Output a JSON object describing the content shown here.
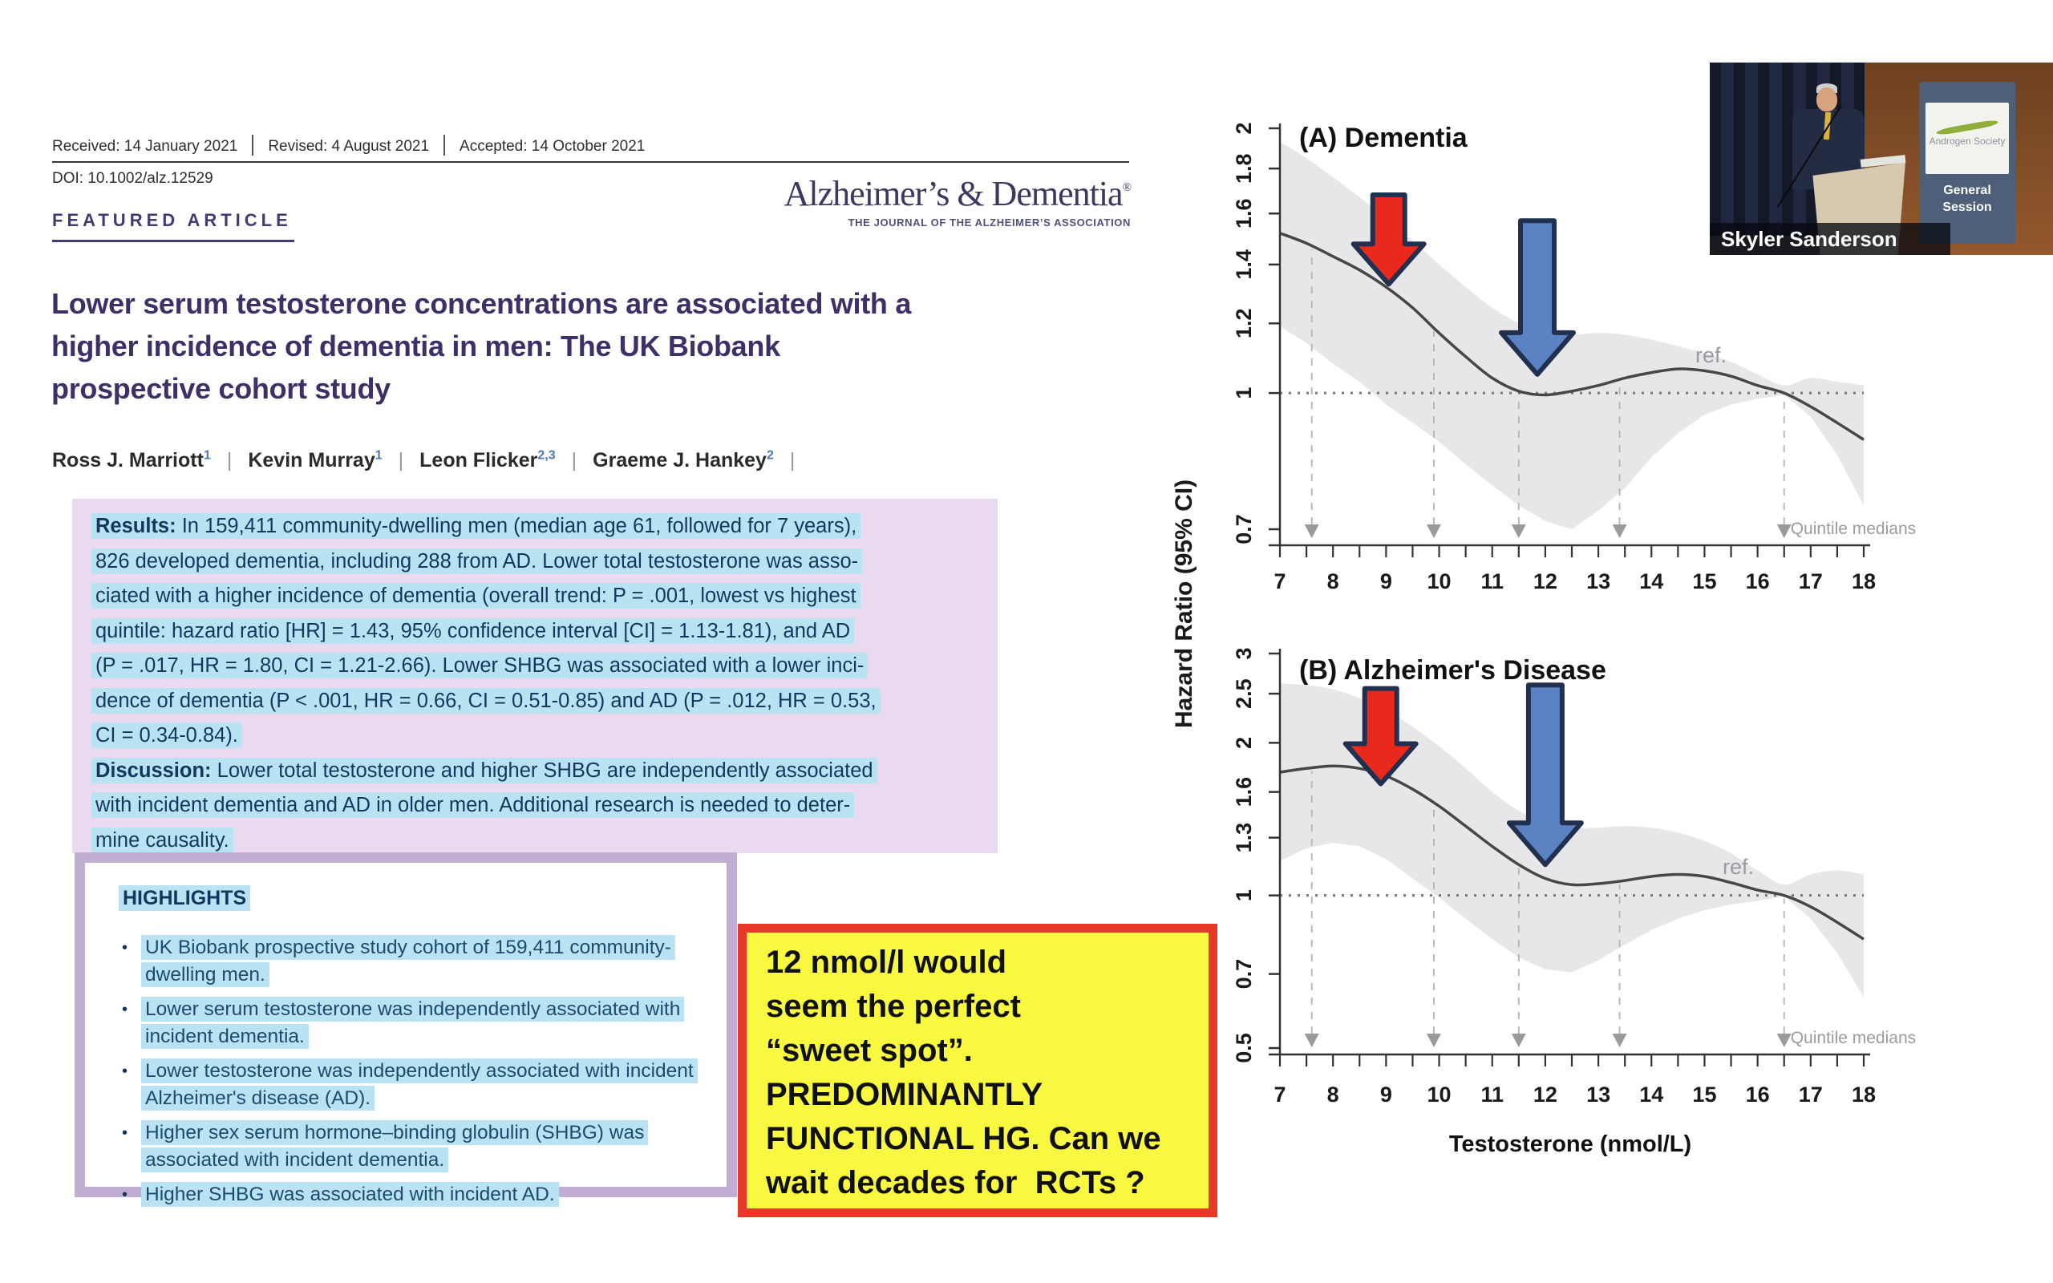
{
  "paper": {
    "header": {
      "segments": [
        "Received: 14 January 2021",
        "Revised: 4 August 2021",
        "Accepted: 14 October 2021"
      ],
      "doi": "DOI: 10.1002/alz.12529"
    },
    "journal": {
      "name": "Alzheimer’s & Dementia",
      "registered": "®",
      "tagline": "THE JOURNAL OF THE ALZHEIMER’S ASSOCIATION"
    },
    "section_tag": "FEATURED ARTICLE",
    "title_lines": [
      "Lower serum testosterone concentrations are associated with a",
      "higher incidence of dementia in men: The UK Biobank",
      "prospective cohort study"
    ],
    "authors": [
      {
        "name": "Ross J. Marriott",
        "sup": "1"
      },
      {
        "name": "Kevin Murray",
        "sup": "1"
      },
      {
        "name": "Leon Flicker",
        "sup": "2,3"
      },
      {
        "name": "Graeme J. Hankey",
        "sup": "2"
      }
    ],
    "author_separator": "|",
    "abstract_lines": [
      {
        "lead": "Results:",
        "text": "In 159,411 community-dwelling men (median age 61, followed for 7 years),"
      },
      {
        "text": "826 developed dementia, including 288 from AD. Lower total testosterone was asso-"
      },
      {
        "text": "ciated with a higher incidence of dementia (overall trend: P = .001, lowest vs highest"
      },
      {
        "text": "quintile: hazard ratio [HR] = 1.43, 95% confidence interval [CI] = 1.13-1.81), and AD"
      },
      {
        "text": "(P = .017, HR = 1.80, CI = 1.21-2.66). Lower SHBG was associated with a lower inci-"
      },
      {
        "text": "dence of dementia (P < .001, HR = 0.66, CI = 0.51-0.85) and AD (P = .012, HR = 0.53,"
      },
      {
        "text": "CI = 0.34-0.84)."
      },
      {
        "lead": "Discussion:",
        "text": "Lower total testosterone and higher SHBG are independently associated"
      },
      {
        "text": "with incident dementia and AD in older men. Additional research is needed to deter-"
      },
      {
        "text": "mine causality."
      }
    ],
    "highlights": {
      "heading": "HIGHLIGHTS",
      "bullets": [
        "UK Biobank prospective study cohort of 159,411 community-dwelling men.",
        "Lower serum testosterone was independently associated with incident dementia.",
        "Lower testosterone was independently associated with incident Alzheimer's disease (AD).",
        "Higher sex serum hormone–binding globulin (SHBG) was associated with incident dementia.",
        "Higher SHBG was associated with incident AD."
      ]
    }
  },
  "note": {
    "background": "#f9f840",
    "border": "#e63928",
    "lines": [
      "12 nmol/l would",
      "seem the perfect",
      "“sweet spot”.",
      "PREDOMINANTLY",
      "FUNCTIONAL HG. Can we",
      "wait decades for  RCTs ?"
    ]
  },
  "video": {
    "speaker_name": "Skyler Sanderson",
    "banner_top": "Androgen Society",
    "banner_bottom_lines": [
      "General",
      "Session"
    ]
  },
  "charts_common": {
    "y_axis_label": "Hazard Ratio (95% CI)",
    "x_axis_label": "Testosterone (nmol/L)",
    "x_ticks": [
      7,
      8,
      9,
      10,
      11,
      12,
      13,
      14,
      15,
      16,
      17,
      18
    ],
    "quintile_medians": [
      7.6,
      9.9,
      11.5,
      13.4,
      16.5
    ],
    "quintile_label": "Quintile medians",
    "ref_label": "ref.",
    "colors": {
      "band": "#e7e7e9",
      "curve": "#474747",
      "red_arrow": "#e8291c",
      "blue_arrow": "#5b83c4",
      "arrow_outline": "#22304f",
      "gray_text": "#979ca0"
    }
  },
  "chart_data": [
    {
      "id": "A",
      "type": "line",
      "title": "(A) Dementia",
      "y_scale": "log",
      "y_ticks": [
        2,
        1.8,
        1.6,
        1.4,
        1.2,
        1,
        0.7
      ],
      "ylim": [
        0.62,
        2.05
      ],
      "xlim": [
        7,
        18
      ],
      "ref_line": 1,
      "curve": [
        [
          7,
          1.52
        ],
        [
          7.5,
          1.48
        ],
        [
          8,
          1.43
        ],
        [
          8.5,
          1.38
        ],
        [
          9,
          1.32
        ],
        [
          9.5,
          1.25
        ],
        [
          10,
          1.17
        ],
        [
          10.5,
          1.1
        ],
        [
          11,
          1.04
        ],
        [
          11.5,
          1.005
        ],
        [
          12,
          0.995
        ],
        [
          12.5,
          1.005
        ],
        [
          13,
          1.02
        ],
        [
          13.5,
          1.04
        ],
        [
          14,
          1.055
        ],
        [
          14.5,
          1.065
        ],
        [
          15,
          1.06
        ],
        [
          15.5,
          1.045
        ],
        [
          16,
          1.02
        ],
        [
          16.5,
          1.0
        ],
        [
          17,
          0.965
        ],
        [
          17.5,
          0.925
        ],
        [
          18,
          0.885
        ]
      ],
      "band_upper": [
        [
          7,
          1.93
        ],
        [
          7.5,
          1.85
        ],
        [
          8,
          1.76
        ],
        [
          8.5,
          1.67
        ],
        [
          9,
          1.58
        ],
        [
          9.5,
          1.49
        ],
        [
          10,
          1.4
        ],
        [
          10.5,
          1.32
        ],
        [
          11,
          1.25
        ],
        [
          11.5,
          1.2
        ],
        [
          12,
          1.17
        ],
        [
          12.5,
          1.165
        ],
        [
          13,
          1.17
        ],
        [
          13.5,
          1.165
        ],
        [
          14,
          1.15
        ],
        [
          14.5,
          1.13
        ],
        [
          15,
          1.11
        ],
        [
          15.5,
          1.085
        ],
        [
          16,
          1.05
        ],
        [
          16.5,
          1.02
        ],
        [
          17,
          1.04
        ],
        [
          17.5,
          1.03
        ],
        [
          18,
          1.02
        ]
      ],
      "band_lower": [
        [
          7,
          1.19
        ],
        [
          7.5,
          1.14
        ],
        [
          8,
          1.08
        ],
        [
          8.5,
          1.03
        ],
        [
          9,
          0.97
        ],
        [
          9.5,
          0.925
        ],
        [
          10,
          0.88
        ],
        [
          10.5,
          0.83
        ],
        [
          11,
          0.785
        ],
        [
          11.5,
          0.745
        ],
        [
          12,
          0.715
        ],
        [
          12.5,
          0.7
        ],
        [
          13,
          0.735
        ],
        [
          13.5,
          0.78
        ],
        [
          14,
          0.845
        ],
        [
          14.5,
          0.9
        ],
        [
          15,
          0.945
        ],
        [
          15.5,
          0.97
        ],
        [
          16,
          0.985
        ],
        [
          16.5,
          0.995
        ],
        [
          17,
          0.94
        ],
        [
          17.5,
          0.85
        ],
        [
          18,
          0.745
        ]
      ],
      "arrows": [
        {
          "color": "red",
          "x": 9.05,
          "from": 1.68,
          "to": 1.33
        },
        {
          "color": "blue",
          "x": 11.85,
          "from": 1.57,
          "to": 1.05
        }
      ]
    },
    {
      "id": "B",
      "type": "line",
      "title": "(B) Alzheimer's Disease",
      "y_scale": "log",
      "y_ticks": [
        3,
        2.5,
        2,
        1.6,
        1.3,
        1,
        0.7,
        0.5
      ],
      "ylim": [
        0.45,
        3.1
      ],
      "xlim": [
        7,
        18
      ],
      "ref_line": 1,
      "curve": [
        [
          7,
          1.75
        ],
        [
          7.5,
          1.78
        ],
        [
          8,
          1.8
        ],
        [
          8.5,
          1.78
        ],
        [
          9,
          1.72
        ],
        [
          9.5,
          1.62
        ],
        [
          10,
          1.5
        ],
        [
          10.5,
          1.37
        ],
        [
          11,
          1.25
        ],
        [
          11.5,
          1.15
        ],
        [
          12,
          1.08
        ],
        [
          12.5,
          1.05
        ],
        [
          13,
          1.055
        ],
        [
          13.5,
          1.07
        ],
        [
          14,
          1.09
        ],
        [
          14.5,
          1.1
        ],
        [
          15,
          1.09
        ],
        [
          15.5,
          1.06
        ],
        [
          16,
          1.025
        ],
        [
          16.5,
          1.0
        ],
        [
          17,
          0.95
        ],
        [
          17.5,
          0.885
        ],
        [
          18,
          0.82
        ]
      ],
      "band_upper": [
        [
          7,
          2.62
        ],
        [
          7.5,
          2.6
        ],
        [
          8,
          2.55
        ],
        [
          8.5,
          2.45
        ],
        [
          9,
          2.32
        ],
        [
          9.5,
          2.15
        ],
        [
          10,
          1.97
        ],
        [
          10.5,
          1.78
        ],
        [
          11,
          1.6
        ],
        [
          11.5,
          1.47
        ],
        [
          12,
          1.39
        ],
        [
          12.5,
          1.36
        ],
        [
          13,
          1.36
        ],
        [
          13.5,
          1.37
        ],
        [
          14,
          1.36
        ],
        [
          14.5,
          1.33
        ],
        [
          15,
          1.28
        ],
        [
          15.5,
          1.21
        ],
        [
          16,
          1.12
        ],
        [
          16.5,
          1.05
        ],
        [
          17,
          1.1
        ],
        [
          17.5,
          1.12
        ],
        [
          18,
          1.1
        ]
      ],
      "band_lower": [
        [
          7,
          1.17
        ],
        [
          7.5,
          1.24
        ],
        [
          8,
          1.27
        ],
        [
          8.5,
          1.25
        ],
        [
          9,
          1.18
        ],
        [
          9.5,
          1.08
        ],
        [
          10,
          0.99
        ],
        [
          10.5,
          0.9
        ],
        [
          11,
          0.82
        ],
        [
          11.5,
          0.755
        ],
        [
          12,
          0.715
        ],
        [
          12.5,
          0.705
        ],
        [
          13,
          0.745
        ],
        [
          13.5,
          0.8
        ],
        [
          14,
          0.855
        ],
        [
          14.5,
          0.9
        ],
        [
          15,
          0.935
        ],
        [
          15.5,
          0.96
        ],
        [
          16,
          0.975
        ],
        [
          16.5,
          0.995
        ],
        [
          17,
          0.9
        ],
        [
          17.5,
          0.77
        ],
        [
          18,
          0.63
        ]
      ],
      "arrows": [
        {
          "color": "red",
          "x": 8.9,
          "from": 2.56,
          "to": 1.66
        },
        {
          "color": "blue",
          "x": 12.0,
          "from": 2.6,
          "to": 1.15
        }
      ]
    }
  ]
}
